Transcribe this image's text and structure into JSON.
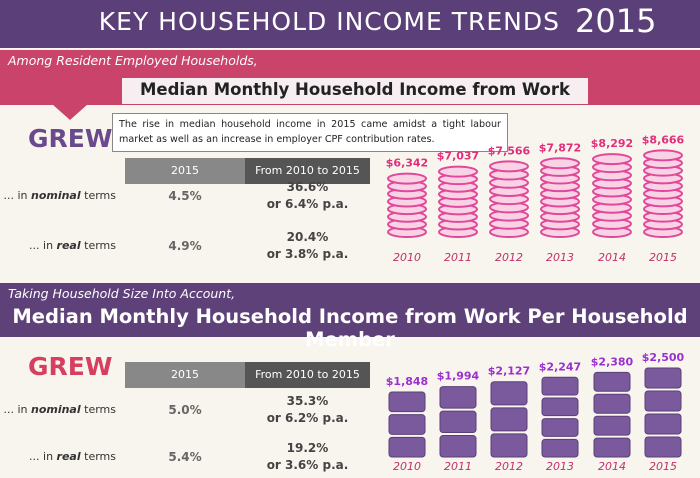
{
  "header": {
    "title": "KEY HOUSEHOLD INCOME TRENDS",
    "year": "2015"
  },
  "sections": [
    {
      "intro": "Among Resident Employed Households,",
      "heading": "Median Monthly Household Income from Work",
      "badge": "GREW",
      "note": "The rise in median household income in 2015 came amidst a tight labour market as well as an increase in employer CPF contribution rates.",
      "table": {
        "columns": [
          "2015",
          "From 2010 to 2015"
        ],
        "rows": [
          {
            "label_pre": "... in ",
            "label_em": "nominal",
            "label_post": " terms",
            "value": "4.5%",
            "change": "36.6%",
            "change_pa": "or 6.4% p.a."
          },
          {
            "label_pre": "... in ",
            "label_em": "real",
            "label_post": " terms",
            "value": "4.9%",
            "change": "20.4%",
            "change_pa": "or 3.8% p.a."
          }
        ]
      },
      "chart_data": {
        "type": "coins",
        "categories": [
          "2010",
          "2011",
          "2012",
          "2013",
          "2014",
          "2015"
        ],
        "values": [
          6342,
          7037,
          7566,
          7872,
          8292,
          8666
        ],
        "value_labels": [
          "$6,342",
          "$7,037",
          "$7,566",
          "$7,872",
          "$8,292",
          "$8,666"
        ],
        "color": "#e0489a"
      }
    },
    {
      "intro": "Taking Household Size Into Account,",
      "heading": "Median Monthly Household Income from Work Per Household Member",
      "badge": "GREW",
      "table": {
        "columns": [
          "2015",
          "From 2010 to 2015"
        ],
        "rows": [
          {
            "label_pre": "... in ",
            "label_em": "nominal",
            "label_post": " terms",
            "value": "5.0%",
            "change": "35.3%",
            "change_pa": "or 6.2% p.a."
          },
          {
            "label_pre": "... in ",
            "label_em": "real",
            "label_post": " terms",
            "value": "5.4%",
            "change": "19.2%",
            "change_pa": "or 3.6% p.a."
          }
        ]
      },
      "chart_data": {
        "type": "wallets",
        "categories": [
          "2010",
          "2011",
          "2012",
          "2013",
          "2014",
          "2015"
        ],
        "values": [
          1848,
          1994,
          2127,
          2247,
          2380,
          2500
        ],
        "value_labels": [
          "$1,848",
          "$1,994",
          "$2,127",
          "$2,247",
          "$2,380",
          "$2,500"
        ],
        "color": "#7a5a9c"
      }
    }
  ]
}
